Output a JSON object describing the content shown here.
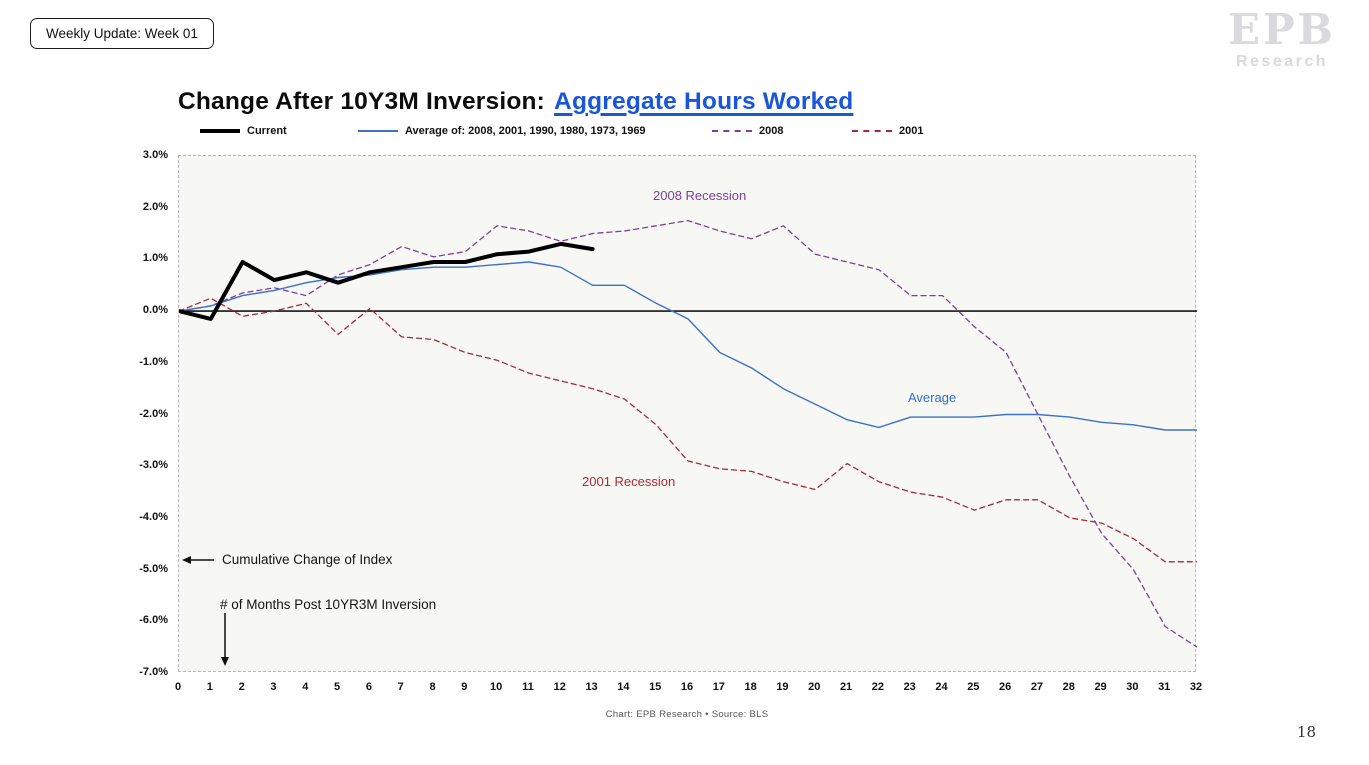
{
  "badge": {
    "label": "Weekly Update: Week 01"
  },
  "logo": {
    "line1": "EPB",
    "line2": "Research"
  },
  "title": {
    "prefix": "Change After 10Y3M Inversion:",
    "link": "Aggregate Hours Worked",
    "link_color": "#1a56db"
  },
  "legend": [
    {
      "label": "Current",
      "style": "solid-thick",
      "color": "#000000"
    },
    {
      "label": "Average of: 2008, 2001, 1990, 1980, 1973, 1969",
      "style": "solid-thin",
      "color": "#3c71c9"
    },
    {
      "label": "2008",
      "style": "dashed",
      "color": "#7b3fa0"
    },
    {
      "label": "2001",
      "style": "dashed",
      "color": "#a3293d"
    }
  ],
  "annotations": {
    "recession2008": {
      "text": "2008 Recession",
      "color": "#7b3fa0"
    },
    "average": {
      "text": "Average",
      "color": "#2f6fd0"
    },
    "recession2001": {
      "text": "2001 Recession",
      "color": "#b02a37"
    },
    "cumulative_note": "Cumulative Change of Index",
    "months_note": "# of Months Post 10YR3M Inversion"
  },
  "caption": "Chart: EPB Research  •  Source: BLS",
  "page_number": "18",
  "chart_data": {
    "type": "line",
    "title": "Change After 10Y3M Inversion: Aggregate Hours Worked",
    "xlabel": "# of Months Post 10YR3M Inversion",
    "ylabel": "Cumulative Change of Index",
    "grid": false,
    "legend_position": "top",
    "x": [
      0,
      1,
      2,
      3,
      4,
      5,
      6,
      7,
      8,
      9,
      10,
      11,
      12,
      13,
      14,
      15,
      16,
      17,
      18,
      19,
      20,
      21,
      22,
      23,
      24,
      25,
      26,
      27,
      28,
      29,
      30,
      31,
      32
    ],
    "ylim": [
      -7.0,
      3.0
    ],
    "yticks": [
      {
        "v": 3,
        "label": "3.0%"
      },
      {
        "v": 2,
        "label": "2.0%"
      },
      {
        "v": 1,
        "label": "1.0%"
      },
      {
        "v": 0,
        "label": "0.0%"
      },
      {
        "v": -1,
        "label": "-1.0%"
      },
      {
        "v": -2,
        "label": "-2.0%"
      },
      {
        "v": -3,
        "label": "-3.0%"
      },
      {
        "v": -4,
        "label": "-4.0%"
      },
      {
        "v": -5,
        "label": "-5.0%"
      },
      {
        "v": -6,
        "label": "-6.0%"
      },
      {
        "v": -7,
        "label": "-7.0%"
      }
    ],
    "series": [
      {
        "name": "2008",
        "color": "#7b3fa0",
        "width": 1.3,
        "dash": "5 4",
        "values": [
          0.0,
          0.1,
          0.35,
          0.45,
          0.3,
          0.7,
          0.9,
          1.25,
          1.05,
          1.15,
          1.65,
          1.55,
          1.35,
          1.5,
          1.55,
          1.65,
          1.75,
          1.55,
          1.4,
          1.65,
          1.1,
          0.95,
          0.8,
          0.3,
          0.3,
          -0.3,
          -0.8,
          -2.0,
          -3.2,
          -4.3,
          -5.0,
          -6.1,
          -6.5
        ]
      },
      {
        "name": "2001",
        "color": "#a3293d",
        "width": 1.3,
        "dash": "5 4",
        "values": [
          0.0,
          0.25,
          -0.1,
          0.0,
          0.15,
          -0.45,
          0.05,
          -0.5,
          -0.55,
          -0.8,
          -0.95,
          -1.2,
          -1.35,
          -1.5,
          -1.7,
          -2.2,
          -2.9,
          -3.05,
          -3.1,
          -3.3,
          -3.45,
          -2.95,
          -3.3,
          -3.5,
          -3.6,
          -3.85,
          -3.65,
          -3.65,
          -4.0,
          -4.1,
          -4.4,
          -4.85,
          -4.85
        ]
      },
      {
        "name": "Average",
        "color": "#3c71c9",
        "width": 1.4,
        "dash": null,
        "values": [
          0.0,
          0.1,
          0.3,
          0.4,
          0.55,
          0.65,
          0.7,
          0.8,
          0.85,
          0.85,
          0.9,
          0.95,
          0.85,
          0.5,
          0.5,
          0.15,
          -0.15,
          -0.8,
          -1.1,
          -1.5,
          -1.8,
          -2.1,
          -2.25,
          -2.05,
          -2.05,
          -2.05,
          -2.0,
          -2.0,
          -2.05,
          -2.15,
          -2.2,
          -2.3,
          -2.3
        ]
      },
      {
        "name": "Current",
        "color": "#000000",
        "width": 4,
        "dash": null,
        "values": [
          0.0,
          -0.15,
          0.95,
          0.6,
          0.75,
          0.55,
          0.75,
          0.85,
          0.95,
          0.95,
          1.1,
          1.15,
          1.3,
          1.2
        ]
      }
    ]
  }
}
